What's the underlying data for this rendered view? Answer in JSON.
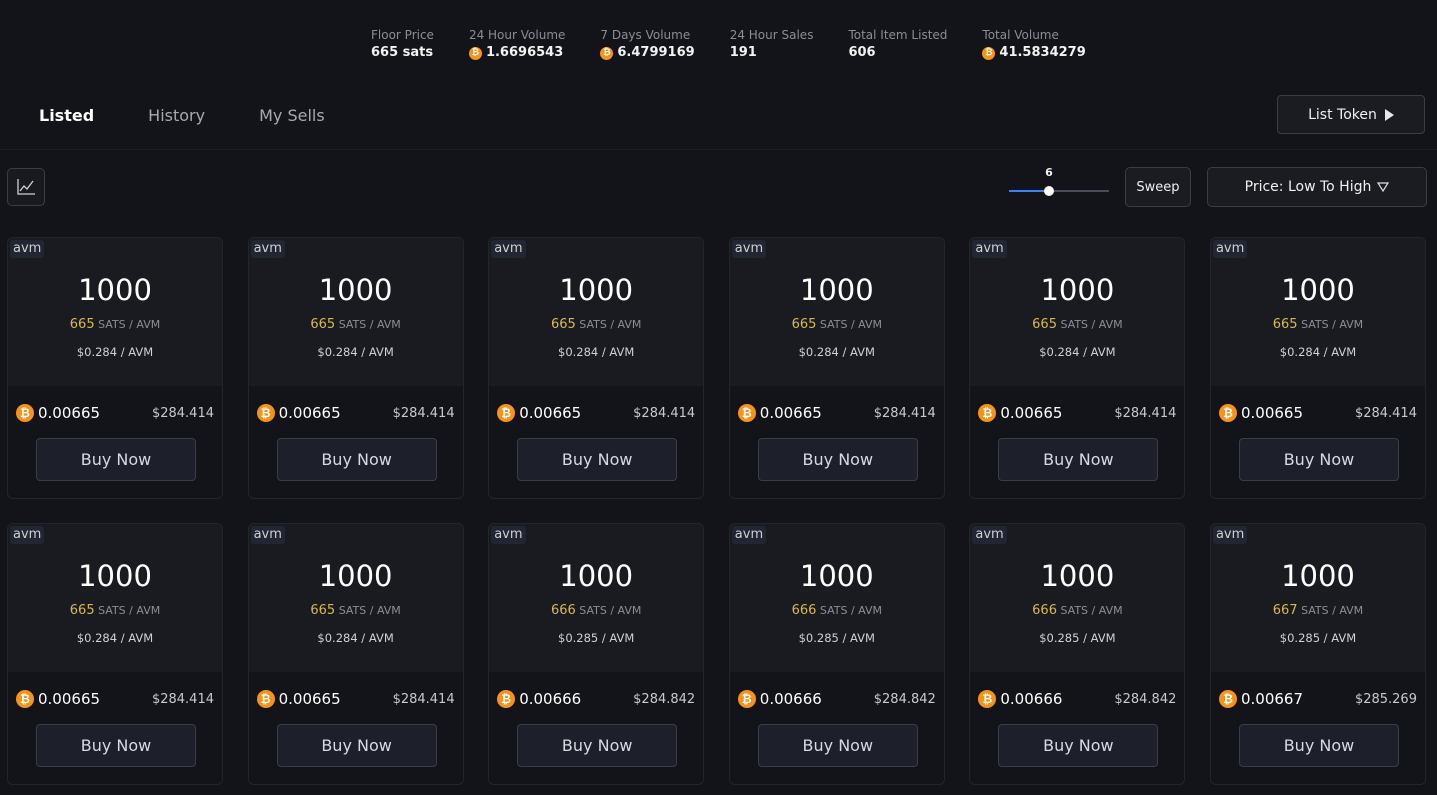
{
  "stats": [
    {
      "label": "Floor Price",
      "value": "665 sats",
      "btc": false
    },
    {
      "label": "24 Hour Volume",
      "value": "1.6696543",
      "btc": true
    },
    {
      "label": "7 Days Volume",
      "value": "6.4799169",
      "btc": true
    },
    {
      "label": "24 Hour Sales",
      "value": "191",
      "btc": false
    },
    {
      "label": "Total Item Listed",
      "value": "606",
      "btc": false
    },
    {
      "label": "Total Volume",
      "value": "41.5834279",
      "btc": true
    }
  ],
  "tabs": [
    {
      "label": "Listed",
      "active": true
    },
    {
      "label": "History",
      "active": false
    },
    {
      "label": "My Sells",
      "active": false
    }
  ],
  "list_token_label": "List Token",
  "toolbar": {
    "chart_icon": "line-chart-icon",
    "sweep_count": "6",
    "sweep_fraction": 0.4,
    "sweep_label": "Sweep",
    "sort_label": "Price: Low To High",
    "sort_icon": "chevron-down-icon"
  },
  "bitcoin_color": "#f7931a",
  "bitcoin_glyph": "₿",
  "sats_unit": "SATS / AVM",
  "buy_label": "Buy Now",
  "listings": [
    {
      "ticker": "avm",
      "amount": "1000",
      "sats": "665",
      "usd_per": "$0.284 / AVM",
      "btc_price": "0.00665",
      "usd_total": "$284.414"
    },
    {
      "ticker": "avm",
      "amount": "1000",
      "sats": "665",
      "usd_per": "$0.284 / AVM",
      "btc_price": "0.00665",
      "usd_total": "$284.414"
    },
    {
      "ticker": "avm",
      "amount": "1000",
      "sats": "665",
      "usd_per": "$0.284 / AVM",
      "btc_price": "0.00665",
      "usd_total": "$284.414"
    },
    {
      "ticker": "avm",
      "amount": "1000",
      "sats": "665",
      "usd_per": "$0.284 / AVM",
      "btc_price": "0.00665",
      "usd_total": "$284.414"
    },
    {
      "ticker": "avm",
      "amount": "1000",
      "sats": "665",
      "usd_per": "$0.284 / AVM",
      "btc_price": "0.00665",
      "usd_total": "$284.414"
    },
    {
      "ticker": "avm",
      "amount": "1000",
      "sats": "665",
      "usd_per": "$0.284 / AVM",
      "btc_price": "0.00665",
      "usd_total": "$284.414"
    },
    {
      "ticker": "avm",
      "amount": "1000",
      "sats": "665",
      "usd_per": "$0.284 / AVM",
      "btc_price": "0.00665",
      "usd_total": "$284.414"
    },
    {
      "ticker": "avm",
      "amount": "1000",
      "sats": "665",
      "usd_per": "$0.284 / AVM",
      "btc_price": "0.00665",
      "usd_total": "$284.414"
    },
    {
      "ticker": "avm",
      "amount": "1000",
      "sats": "666",
      "usd_per": "$0.285 / AVM",
      "btc_price": "0.00666",
      "usd_total": "$284.842"
    },
    {
      "ticker": "avm",
      "amount": "1000",
      "sats": "666",
      "usd_per": "$0.285 / AVM",
      "btc_price": "0.00666",
      "usd_total": "$284.842"
    },
    {
      "ticker": "avm",
      "amount": "1000",
      "sats": "666",
      "usd_per": "$0.285 / AVM",
      "btc_price": "0.00666",
      "usd_total": "$284.842"
    },
    {
      "ticker": "avm",
      "amount": "1000",
      "sats": "667",
      "usd_per": "$0.285 / AVM",
      "btc_price": "0.00667",
      "usd_total": "$285.269"
    }
  ]
}
